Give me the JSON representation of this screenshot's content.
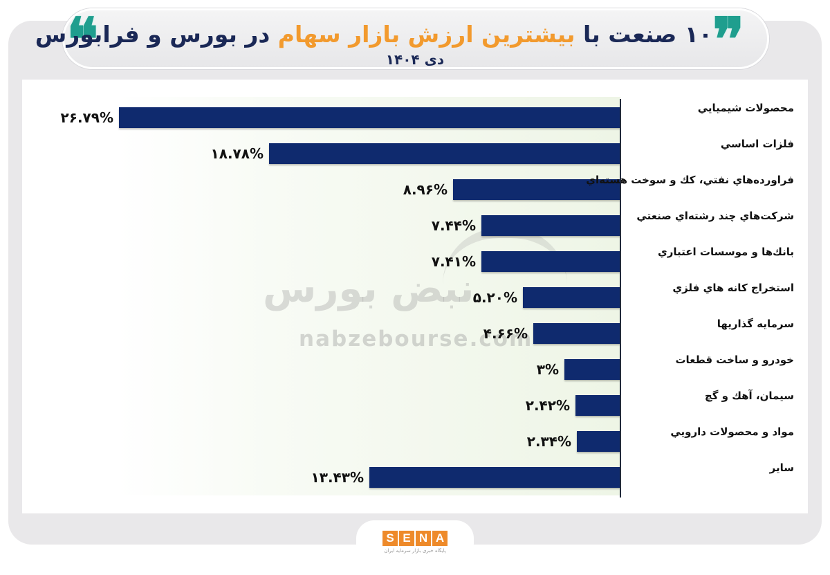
{
  "header": {
    "title_part1": "۱۰ صنعت با ",
    "title_accent": "بیشترین ارزش بازار سهام",
    "title_part2": " در بورس و فرابورس",
    "subtitle": "دی ۱۴۰۴",
    "quote_open": "❝",
    "quote_close": "❞",
    "quote_color": "#1f9e8e",
    "title_color": "#1a2856",
    "accent_color": "#f29a2e"
  },
  "watermark": {
    "persian": "نبض بورس",
    "url": "nabzebourse.com"
  },
  "footer": {
    "logo_letters": [
      "S",
      "E",
      "N",
      "A"
    ],
    "logo_subtitle": "پایگاه خبری بازار سرمایه ایران",
    "logo_color": "#ee8a2a"
  },
  "chart_data": {
    "type": "bar",
    "orientation": "horizontal",
    "title": "۱۰ صنعت با بیشترین ارزش بازار سهام در بورس و فرابورس",
    "subtitle": "دی ۱۴۰۴",
    "xlabel": "",
    "ylabel": "",
    "unit": "%",
    "bar_color": "#0f2a6e",
    "grid": false,
    "legend": "none",
    "categories": [
      "محصولات شيميايي",
      "فلزات اساسي",
      "فراورده‌هاي نفتي، كك و سوخت هسته‌اي",
      "شركت‌هاي چند رشته‌اي صنعتي",
      "بانك‌ها و موسسات اعتباري",
      "استخراج كانه هاي فلزي",
      "سرمايه گذاريها",
      "خودرو و ساخت قطعات",
      "سيمان، آهك و گچ",
      "مواد و محصولات دارويي",
      "ساير"
    ],
    "values": [
      26.79,
      18.78,
      8.96,
      7.44,
      7.41,
      5.2,
      4.66,
      3.0,
      2.42,
      2.34,
      13.43
    ],
    "value_labels": [
      "۲۶.۷۹%",
      "۱۸.۷۸%",
      "۸.۹۶%",
      "۷.۴۴%",
      "۷.۴۱%",
      "۵.۲۰%",
      "۴.۶۶%",
      "۳%",
      "۲.۴۲%",
      "۲.۳۴%",
      "۱۳.۴۳%"
    ],
    "xlim": [
      0,
      26.79
    ]
  }
}
